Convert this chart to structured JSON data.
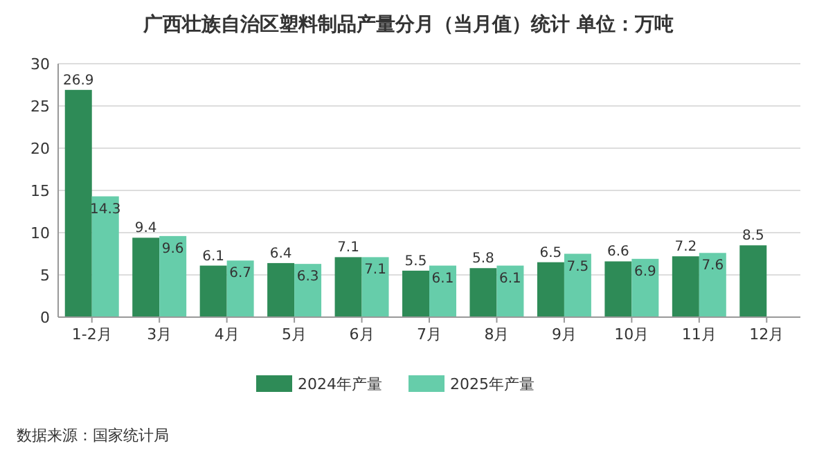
{
  "chart_data": {
    "type": "bar",
    "title": "广西壮族自治区塑料制品产量分月（当月值）统计  单位：万吨",
    "categories": [
      "1-2月",
      "3月",
      "4月",
      "5月",
      "6月",
      "7月",
      "8月",
      "9月",
      "10月",
      "11月",
      "12月"
    ],
    "series": [
      {
        "name": "2024年产量",
        "color": "#2e8b57",
        "values": [
          26.9,
          9.4,
          6.1,
          6.4,
          7.1,
          5.5,
          5.8,
          6.5,
          6.6,
          7.2,
          8.5
        ]
      },
      {
        "name": "2025年产量",
        "color": "#66cdaa",
        "values": [
          14.3,
          9.6,
          6.7,
          6.3,
          7.1,
          6.1,
          6.1,
          7.5,
          6.9,
          7.6,
          null
        ]
      }
    ],
    "ylim": [
      0,
      30
    ],
    "yticks": [
      0,
      5,
      10,
      15,
      20,
      25,
      30
    ],
    "grid": "y",
    "legend": "bottom",
    "data_labels": true,
    "annotations": [
      "数据来源：国家统计局"
    ]
  }
}
